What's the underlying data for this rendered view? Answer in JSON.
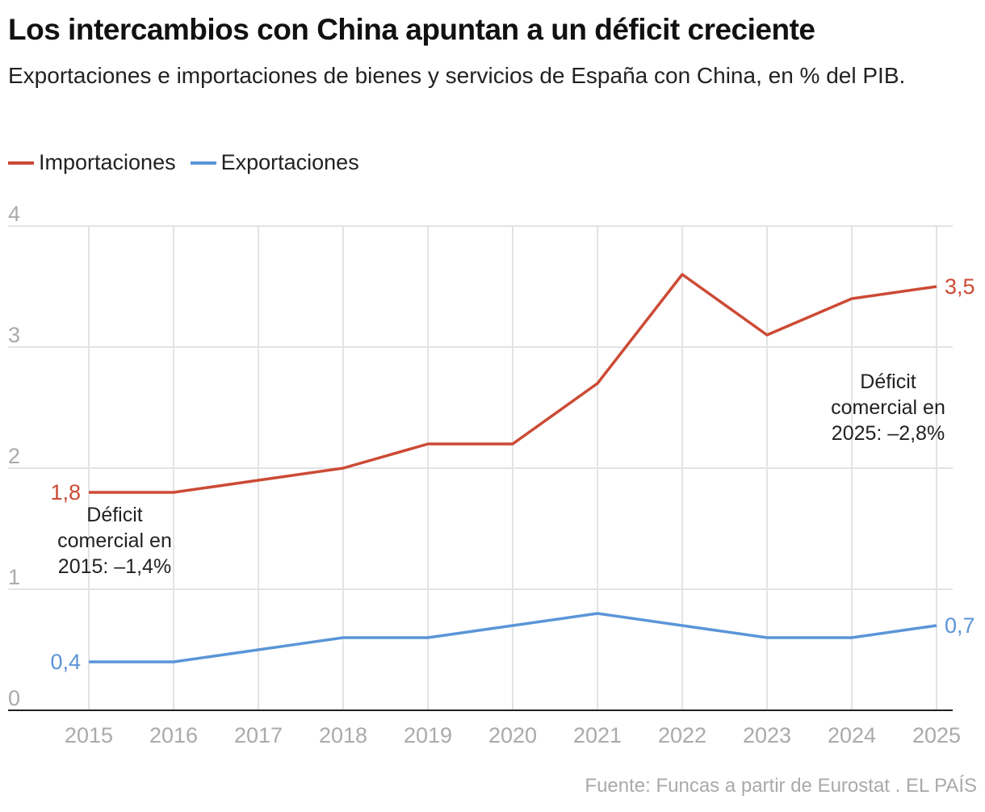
{
  "title": "Los intercambios con China apuntan a un déficit creciente",
  "subtitle": "Exportaciones e importaciones de bienes y servicios de España con China, en % del PIB.",
  "source": "Fuente: Funcas a partir de Eurostat . EL PAÍS",
  "chart_data": {
    "type": "line",
    "x": [
      2015,
      2016,
      2017,
      2018,
      2019,
      2020,
      2021,
      2022,
      2023,
      2024,
      2025
    ],
    "ylim": [
      0,
      4
    ],
    "yticks": [
      "0",
      "1",
      "2",
      "3",
      "4"
    ],
    "grid": true,
    "legend_placement": "top-left",
    "series": [
      {
        "name": "Importaciones",
        "color": "#cc4a35",
        "values": [
          1.8,
          1.8,
          1.9,
          2.0,
          2.2,
          2.2,
          2.7,
          3.6,
          3.1,
          3.4,
          3.5
        ],
        "start_label": "1,8",
        "end_label": "3,5"
      },
      {
        "name": "Exportaciones",
        "color": "#5b95d8",
        "values": [
          0.4,
          0.4,
          0.5,
          0.6,
          0.6,
          0.7,
          0.8,
          0.7,
          0.6,
          0.6,
          0.7
        ],
        "start_label": "0,4",
        "end_label": "0,7"
      }
    ],
    "annotations": [
      {
        "lines": [
          "Déficit",
          "comercial en",
          "2015: –1,4%"
        ],
        "x": 2016,
        "y": 1.4
      },
      {
        "lines": [
          "Déficit",
          "comercial en",
          "2025: –2,8%"
        ],
        "x": 2025,
        "y": 2.5
      }
    ]
  }
}
